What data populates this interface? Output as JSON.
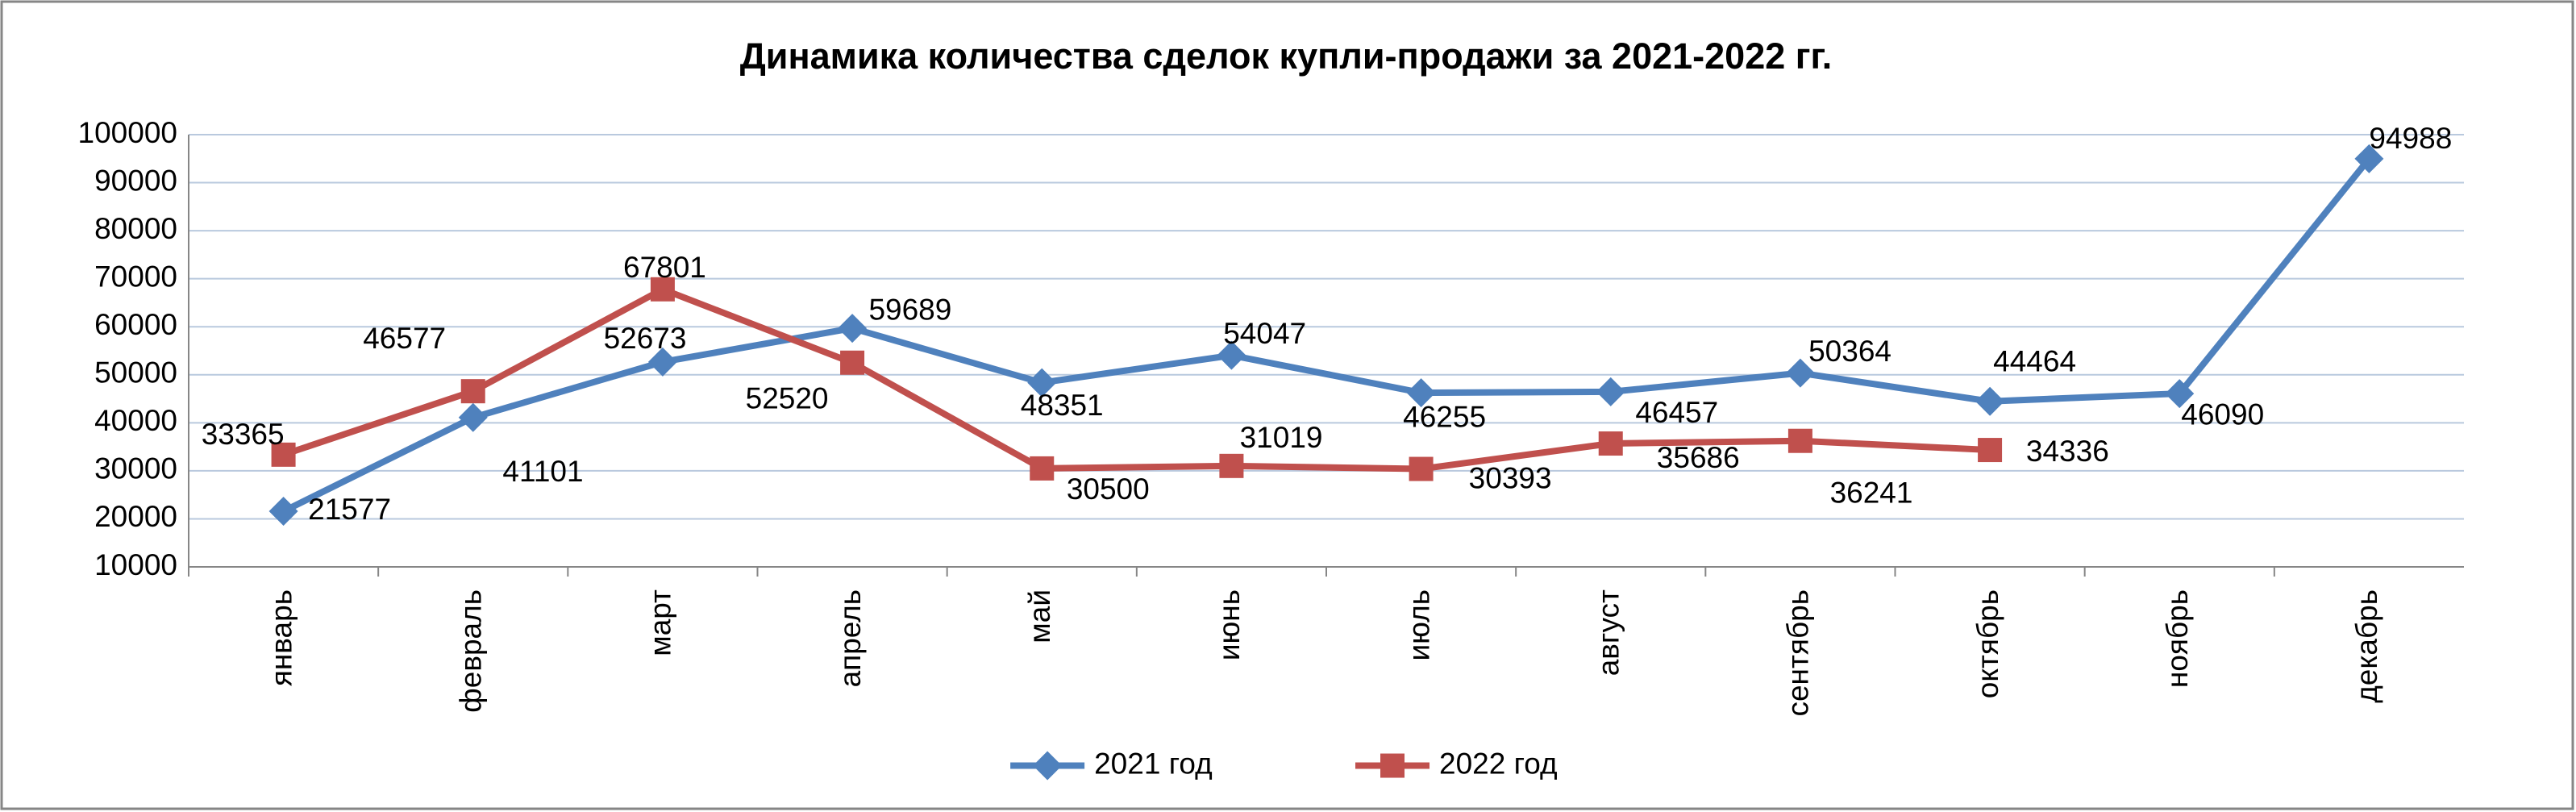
{
  "chart_data": {
    "type": "line",
    "title": "Динамика количества сделок купли-продажи за 2021-2022 гг.",
    "categories": [
      "январь",
      "февраль",
      "март",
      "апрель",
      "май",
      "июнь",
      "июль",
      "август",
      "сентябрь",
      "октябрь",
      "ноябрь",
      "декабрь"
    ],
    "series": [
      {
        "name": "2021 год",
        "color": "#4f81bd",
        "marker": "diamond",
        "values": [
          21577,
          41101,
          52673,
          59689,
          48351,
          54047,
          46255,
          46457,
          50364,
          44464,
          46090,
          94988
        ]
      },
      {
        "name": "2022 год",
        "color": "#c0504d",
        "marker": "square",
        "values": [
          33365,
          46577,
          67801,
          52520,
          30500,
          31019,
          30393,
          35686,
          36241,
          34336,
          null,
          null
        ]
      }
    ],
    "ylim": [
      10000,
      100000
    ],
    "yticks": [
      10000,
      20000,
      30000,
      40000,
      50000,
      60000,
      70000,
      80000,
      90000,
      100000
    ],
    "grid": true,
    "legend": "bottom"
  }
}
